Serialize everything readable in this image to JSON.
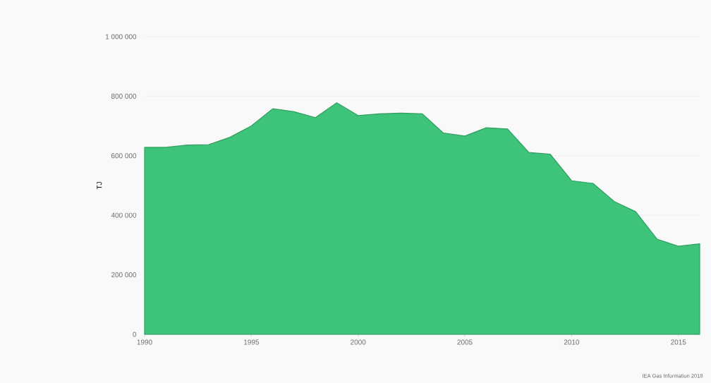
{
  "chart_data": {
    "type": "area",
    "ylabel": "TJ",
    "annotations": [
      "IEA Gas Information 2018"
    ],
    "x": [
      1990,
      1991,
      1992,
      1993,
      1994,
      1995,
      1996,
      1997,
      1998,
      1999,
      2000,
      2001,
      2002,
      2003,
      2004,
      2005,
      2006,
      2007,
      2008,
      2009,
      2010,
      2011,
      2012,
      2013,
      2014,
      2015,
      2016
    ],
    "values": [
      628000,
      628000,
      636000,
      637000,
      662000,
      700000,
      758000,
      748000,
      728000,
      778000,
      735000,
      741000,
      743000,
      741000,
      676000,
      666000,
      694000,
      690000,
      611000,
      605000,
      516000,
      507000,
      446000,
      412000,
      320000,
      296000,
      304000
    ],
    "color": "#3ec47a",
    "xlim": [
      1990,
      2016
    ],
    "ylim": [
      0,
      1000000
    ],
    "xticks": [
      1990,
      1995,
      2000,
      2005,
      2010,
      2015
    ],
    "yticks": [
      0,
      {
        "value": 200000,
        "label": "200 000"
      },
      {
        "value": 400000,
        "label": "400 000"
      },
      {
        "value": 600000,
        "label": "600 000"
      },
      {
        "value": 800000,
        "label": "800 000"
      },
      {
        "value": 1000000,
        "label": "1 000 000"
      }
    ],
    "grid": "y"
  }
}
